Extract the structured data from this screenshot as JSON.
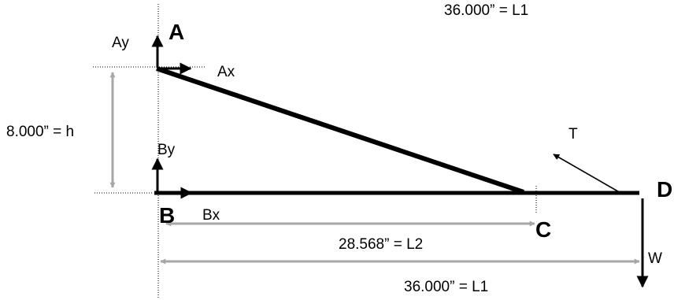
{
  "diagram": {
    "points": {
      "a": "A",
      "b": "B",
      "c": "C",
      "d": "D"
    },
    "forces": {
      "ay": "Ay",
      "ax": "Ax",
      "by": "By",
      "bx": "Bx",
      "t": "T",
      "w": "W"
    },
    "dimensions": {
      "h": "8.000” = h",
      "l2": "28.568” = L2",
      "l1": "36.000” = L1",
      "l1_top": "36.000” = L1"
    },
    "colors": {
      "member": "#000000",
      "dimension": "#a6a6a6",
      "text": "#000000"
    }
  }
}
